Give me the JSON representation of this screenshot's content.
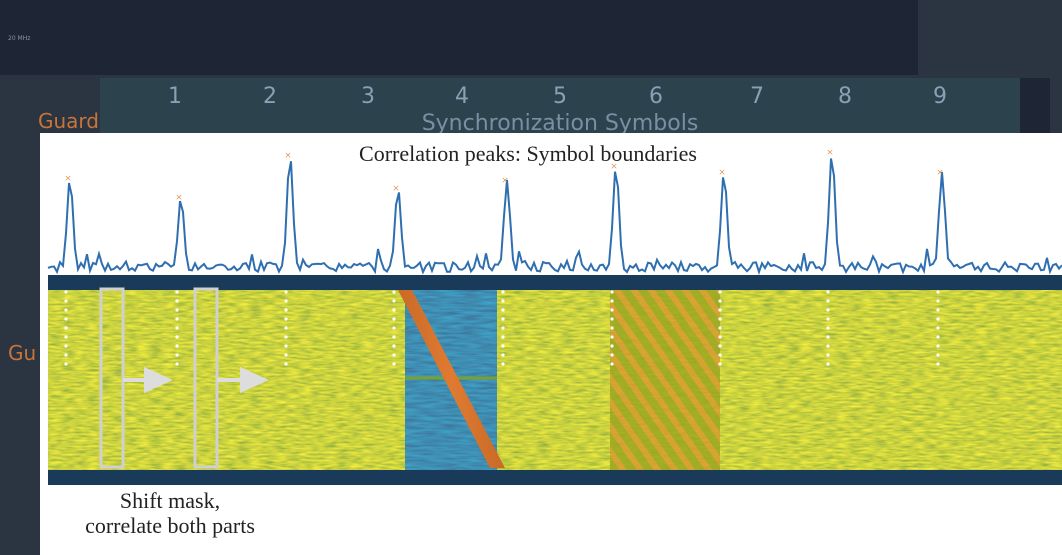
{
  "header": {
    "bandwidth": "20 MHz",
    "symbol_numbers": [
      1,
      2,
      3,
      4,
      5,
      6,
      7,
      8,
      9
    ],
    "guard_label": "Guard",
    "section_label": "Synchronization Symbols",
    "guard_label_lower": "Gu"
  },
  "figure": {
    "title": "Correlation peaks: Symbol boundaries",
    "caption": [
      "Shift mask,",
      "correlate both parts"
    ]
  }
}
